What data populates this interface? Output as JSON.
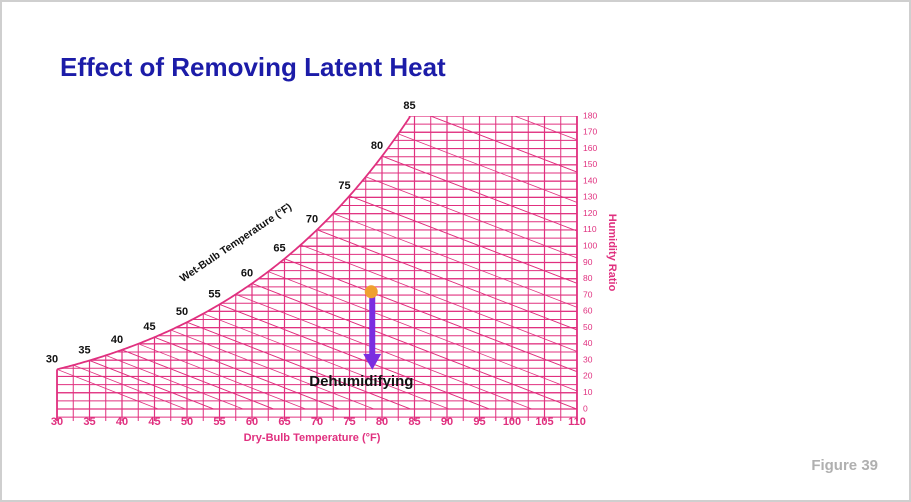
{
  "slide": {
    "title": "Effect of Removing Latent Heat",
    "figure_label": "Figure 39"
  },
  "chart_data": {
    "type": "psychrometric",
    "x_label": "Dry-Bulb Temperature (°F)",
    "y_label": "Humidity Ratio",
    "wet_bulb_label": "Wet-Bulb Temperature (°F)",
    "annotation": "Dehumidifying",
    "xlim": [
      30,
      110
    ],
    "xticks": [
      30,
      35,
      40,
      45,
      50,
      55,
      60,
      65,
      70,
      75,
      80,
      85,
      90,
      95,
      100,
      105,
      110
    ],
    "ylim": [
      0,
      180
    ],
    "yticks": [
      0,
      10,
      20,
      30,
      40,
      50,
      60,
      70,
      80,
      90,
      100,
      110,
      120,
      130,
      140,
      150,
      160,
      170,
      180
    ],
    "wet_bulb_temps": [
      30,
      35,
      40,
      45,
      50,
      55,
      60,
      65,
      70,
      75,
      80,
      85
    ],
    "process": {
      "dry_bulb": 78.5,
      "start_humidity_ratio": 72,
      "end_humidity_ratio": 24
    },
    "color": "#e0307f",
    "point_color": "#f0a030",
    "arrow_color": "#7b2de0"
  }
}
